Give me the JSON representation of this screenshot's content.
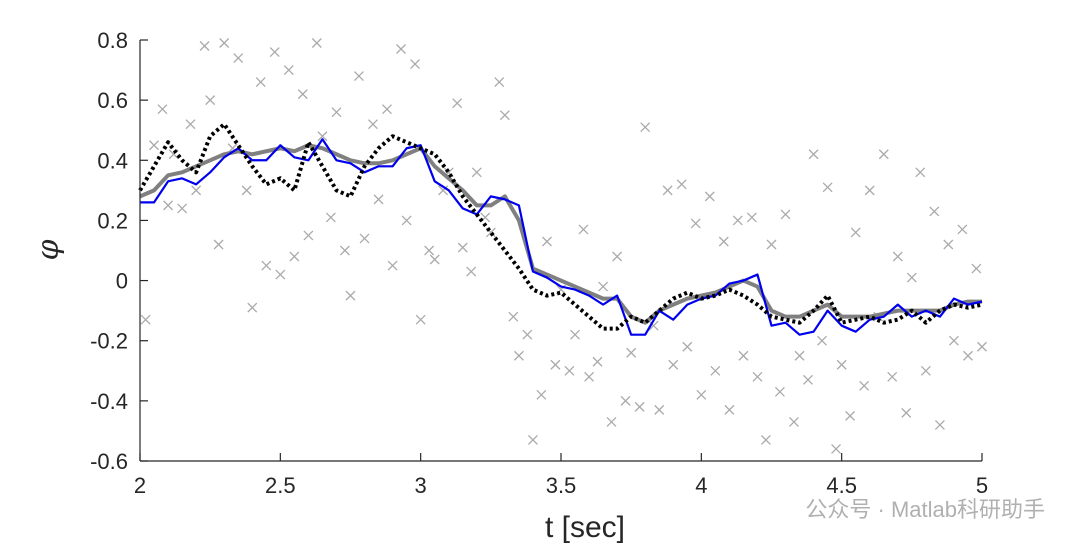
{
  "chart_data": {
    "type": "line",
    "xlabel": "t [sec]",
    "ylabel": "φ",
    "xlim": [
      2,
      5
    ],
    "ylim": [
      -0.6,
      0.8
    ],
    "xticks": [
      2,
      2.5,
      3,
      3.5,
      4,
      4.5,
      5
    ],
    "yticks": [
      -0.6,
      -0.4,
      -0.2,
      0,
      0.2,
      0.4,
      0.6,
      0.8
    ],
    "watermark": "公众号 · Matlab科研助手",
    "x": [
      2,
      2.05,
      2.1,
      2.15,
      2.2,
      2.25,
      2.3,
      2.35,
      2.4,
      2.45,
      2.5,
      2.55,
      2.6,
      2.65,
      2.7,
      2.75,
      2.8,
      2.85,
      2.9,
      2.95,
      3,
      3.05,
      3.1,
      3.15,
      3.2,
      3.25,
      3.3,
      3.35,
      3.4,
      3.45,
      3.5,
      3.55,
      3.6,
      3.65,
      3.7,
      3.75,
      3.8,
      3.85,
      3.9,
      3.95,
      4,
      4.05,
      4.1,
      4.15,
      4.2,
      4.25,
      4.3,
      4.35,
      4.4,
      4.45,
      4.5,
      4.55,
      4.6,
      4.65,
      4.7,
      4.75,
      4.8,
      4.85,
      4.9,
      4.95,
      5
    ],
    "series": [
      {
        "marker": "x",
        "color": "#aaaaaa",
        "x": [
          2.02,
          2.05,
          2.08,
          2.1,
          2.12,
          2.15,
          2.18,
          2.2,
          2.23,
          2.25,
          2.28,
          2.3,
          2.33,
          2.35,
          2.38,
          2.4,
          2.43,
          2.45,
          2.48,
          2.5,
          2.53,
          2.55,
          2.58,
          2.6,
          2.63,
          2.65,
          2.68,
          2.7,
          2.73,
          2.75,
          2.78,
          2.8,
          2.83,
          2.85,
          2.88,
          2.9,
          2.93,
          2.95,
          2.98,
          3,
          3.03,
          3.05,
          3.08,
          3.1,
          3.13,
          3.15,
          3.18,
          3.2,
          3.23,
          3.25,
          3.28,
          3.3,
          3.33,
          3.35,
          3.38,
          3.4,
          3.43,
          3.45,
          3.48,
          3.5,
          3.53,
          3.55,
          3.58,
          3.6,
          3.63,
          3.65,
          3.68,
          3.7,
          3.73,
          3.75,
          3.78,
          3.8,
          3.83,
          3.85,
          3.88,
          3.9,
          3.93,
          3.95,
          3.98,
          4,
          4.03,
          4.05,
          4.08,
          4.1,
          4.13,
          4.15,
          4.18,
          4.2,
          4.23,
          4.25,
          4.28,
          4.3,
          4.33,
          4.35,
          4.38,
          4.4,
          4.43,
          4.45,
          4.48,
          4.5,
          4.53,
          4.55,
          4.58,
          4.6,
          4.63,
          4.65,
          4.68,
          4.7,
          4.73,
          4.75,
          4.78,
          4.8,
          4.83,
          4.85,
          4.88,
          4.9,
          4.93,
          4.95,
          4.98,
          5
        ],
        "values": [
          -0.13,
          0.45,
          0.57,
          0.25,
          0.42,
          0.24,
          0.52,
          0.3,
          0.78,
          0.6,
          0.12,
          0.79,
          0.44,
          0.74,
          0.3,
          -0.09,
          0.66,
          0.05,
          0.76,
          0.02,
          0.7,
          0.08,
          0.62,
          0.15,
          0.79,
          0.48,
          0.21,
          0.56,
          0.1,
          -0.05,
          0.68,
          0.14,
          0.52,
          0.27,
          0.57,
          0.05,
          0.77,
          0.2,
          0.72,
          -0.13,
          0.1,
          0.07,
          0.3,
          0.36,
          0.59,
          0.11,
          0.03,
          0.36,
          0.21,
          0.16,
          0.66,
          0.55,
          -0.12,
          -0.25,
          -0.18,
          -0.53,
          -0.38,
          0.13,
          -0.28,
          -0.03,
          -0.3,
          -0.18,
          0.17,
          -0.32,
          -0.27,
          -0.02,
          -0.47,
          0.08,
          -0.4,
          -0.24,
          -0.42,
          0.51,
          -0.15,
          -0.43,
          0.3,
          -0.28,
          0.32,
          -0.22,
          0.19,
          -0.38,
          0.28,
          -0.3,
          0.13,
          -0.43,
          0.2,
          -0.25,
          0.21,
          -0.32,
          -0.53,
          0.12,
          -0.37,
          0.22,
          -0.47,
          -0.25,
          -0.33,
          0.42,
          -0.2,
          0.31,
          -0.56,
          -0.28,
          -0.45,
          0.16,
          -0.35,
          0.3,
          -0.12,
          0.42,
          -0.32,
          0.08,
          -0.44,
          0.01,
          0.36,
          -0.3,
          0.23,
          -0.48,
          0.12,
          -0.2,
          0.17,
          -0.25,
          0.04,
          -0.22
        ]
      },
      {
        "color": "#808080",
        "width": 4,
        "values": [
          0.28,
          0.3,
          0.35,
          0.36,
          0.38,
          0.4,
          0.42,
          0.43,
          0.42,
          0.43,
          0.44,
          0.43,
          0.45,
          0.44,
          0.42,
          0.4,
          0.39,
          0.39,
          0.4,
          0.42,
          0.44,
          0.38,
          0.34,
          0.3,
          0.25,
          0.25,
          0.28,
          0.2,
          0.04,
          0.02,
          0,
          -0.02,
          -0.04,
          -0.06,
          -0.06,
          -0.12,
          -0.14,
          -0.1,
          -0.08,
          -0.06,
          -0.05,
          -0.04,
          -0.02,
          0,
          -0.02,
          -0.1,
          -0.12,
          -0.12,
          -0.1,
          -0.08,
          -0.12,
          -0.12,
          -0.12,
          -0.11,
          -0.1,
          -0.1,
          -0.1,
          -0.1,
          -0.08,
          -0.07,
          -0.07
        ]
      },
      {
        "color": "#0000ee",
        "width": 2.2,
        "values": [
          0.26,
          0.26,
          0.33,
          0.34,
          0.32,
          0.36,
          0.41,
          0.44,
          0.4,
          0.4,
          0.45,
          0.41,
          0.4,
          0.47,
          0.4,
          0.39,
          0.36,
          0.38,
          0.38,
          0.44,
          0.45,
          0.33,
          0.3,
          0.24,
          0.22,
          0.28,
          0.27,
          0.25,
          0.03,
          0.01,
          -0.02,
          -0.03,
          -0.05,
          -0.08,
          -0.05,
          -0.18,
          -0.18,
          -0.1,
          -0.13,
          -0.08,
          -0.06,
          -0.05,
          -0.01,
          0,
          0.02,
          -0.15,
          -0.14,
          -0.18,
          -0.17,
          -0.1,
          -0.15,
          -0.17,
          -0.13,
          -0.12,
          -0.08,
          -0.12,
          -0.1,
          -0.12,
          -0.06,
          -0.08,
          -0.07
        ]
      },
      {
        "color": "#000000",
        "width": 4,
        "dotted": true,
        "values": [
          0.3,
          0.38,
          0.46,
          0.4,
          0.36,
          0.48,
          0.52,
          0.45,
          0.38,
          0.32,
          0.34,
          0.3,
          0.46,
          0.38,
          0.3,
          0.28,
          0.38,
          0.44,
          0.48,
          0.46,
          0.44,
          0.42,
          0.36,
          0.28,
          0.22,
          0.16,
          0.1,
          0.04,
          -0.03,
          -0.05,
          -0.04,
          -0.08,
          -0.12,
          -0.16,
          -0.16,
          -0.12,
          -0.14,
          -0.1,
          -0.06,
          -0.04,
          -0.06,
          -0.05,
          -0.03,
          -0.05,
          -0.08,
          -0.12,
          -0.13,
          -0.14,
          -0.1,
          -0.05,
          -0.14,
          -0.13,
          -0.12,
          -0.14,
          -0.13,
          -0.1,
          -0.14,
          -0.1,
          -0.08,
          -0.09,
          -0.08
        ]
      }
    ]
  }
}
